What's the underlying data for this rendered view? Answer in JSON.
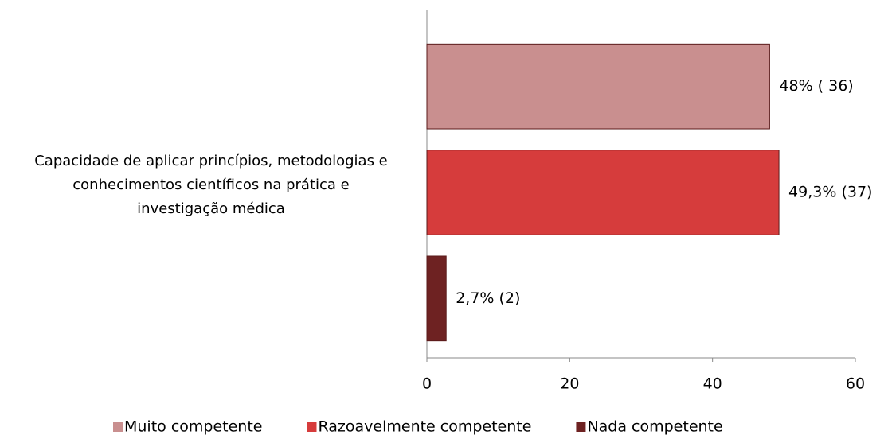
{
  "chart_data": {
    "type": "bar",
    "orientation": "horizontal",
    "categories": [
      "Capacidade de aplicar princípios, metodologias e conhecimentos científicos na prática e investigação médica"
    ],
    "series": [
      {
        "name": "Muito competente",
        "color": "#c98f8f",
        "values": [
          48
        ],
        "value_labels": [
          "48% ( 36)"
        ]
      },
      {
        "name": "Razoavelmente competente",
        "color": "#d63c3c",
        "values": [
          49.3
        ],
        "value_labels": [
          "49,3% (37)"
        ]
      },
      {
        "name": "Nada competente",
        "color": "#6e2222",
        "values": [
          2.7
        ],
        "value_labels": [
          "2,7% (2)"
        ]
      }
    ],
    "xlim": [
      0,
      60
    ],
    "xticks": [
      0,
      20,
      40,
      60
    ],
    "legend": "bottom"
  }
}
